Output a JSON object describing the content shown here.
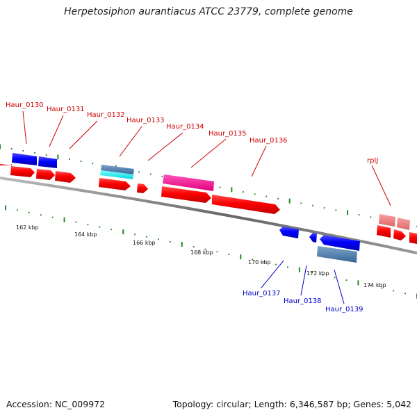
{
  "title": "Herpetosiphon aurantiacus ATCC 23779, complete genome",
  "footer": {
    "accession": "Accession: NC_009972",
    "summary": "Topology: circular; Length: 6,346,587 bp; Genes: 5,042"
  },
  "colors": {
    "backbone": "#777777",
    "ticks": "#228822",
    "forward_cds": "#ee0000",
    "reverse_cds": "#0000ee",
    "forward_label": "#cc0000",
    "reverse_label": "#0000cc"
  },
  "scale": {
    "unit": "kbp",
    "labels": [
      "162 kbp",
      "164 kbp",
      "166 kbp",
      "168 kbp",
      "170 kbp",
      "172 kbp",
      "174 kbp"
    ]
  },
  "forward_labels": [
    "Haur_0130",
    "Haur_0131",
    "Haur_0132",
    "Haur_0133",
    "Haur_0134",
    "Haur_0135",
    "Haur_0136",
    "rplJ"
  ],
  "reverse_labels": [
    "Haur_0137",
    "Haur_0138",
    "Haur_0139"
  ]
}
